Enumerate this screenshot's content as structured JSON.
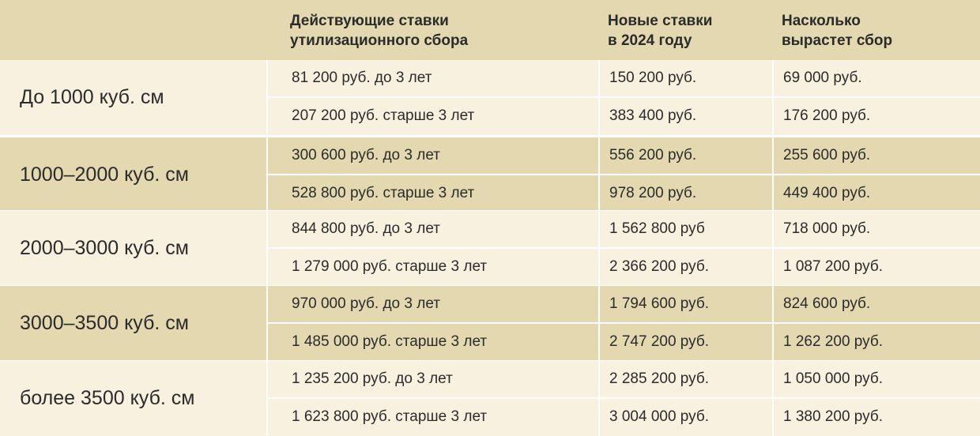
{
  "header": {
    "col_current": "Действующие ставки\nутилизационного сбора",
    "col_new": "Новые ставки\nв 2024 году",
    "col_increase": "Насколько\nвырастет сбор"
  },
  "groups": [
    {
      "label": "До 1000 куб. см",
      "rows": [
        {
          "current": "81 200 руб. до 3 лет",
          "new": "150 200 руб.",
          "increase": "69 000 руб."
        },
        {
          "current": "207 200 руб. старше 3 лет",
          "new": "383 400 руб.",
          "increase": "176 200 руб."
        }
      ]
    },
    {
      "label": "1000–2000 куб. см",
      "rows": [
        {
          "current": "300 600 руб. до 3 лет",
          "new": "556 200 руб.",
          "increase": "255 600 руб."
        },
        {
          "current": "528 800 руб. старше 3 лет",
          "new": "978 200 руб.",
          "increase": "449 400 руб."
        }
      ]
    },
    {
      "label": "2000–3000 куб. см",
      "rows": [
        {
          "current": "844 800 руб. до 3 лет",
          "new": "1 562 800 руб",
          "increase": "718 000 руб."
        },
        {
          "current": "1 279 000 руб. старше 3 лет",
          "new": "2 366 200 руб.",
          "increase": "1 087 200 руб."
        }
      ]
    },
    {
      "label": "3000–3500 куб. см",
      "rows": [
        {
          "current": "970 000 руб. до 3 лет",
          "new": "1 794 600 руб.",
          "increase": "824 600 руб."
        },
        {
          "current": "1 485 000 руб. старше 3 лет",
          "new": "2 747 200 руб.",
          "increase": "1 262 200 руб."
        }
      ]
    },
    {
      "label": "более 3500 куб. см",
      "rows": [
        {
          "current": "1 235 200 руб. до 3 лет",
          "new": "2 285 200 руб.",
          "increase": "1 050 000 руб."
        },
        {
          "current": "1 623 800 руб. старше 3 лет",
          "new": "3 004 000 руб.",
          "increase": "1 380 200 руб."
        }
      ]
    }
  ],
  "colors": {
    "header_bg": "#e3d8b0",
    "row_light": "#f8f1df",
    "row_dark": "#e3d8b0",
    "divider": "#ffffff",
    "text": "#2b2b2b"
  }
}
